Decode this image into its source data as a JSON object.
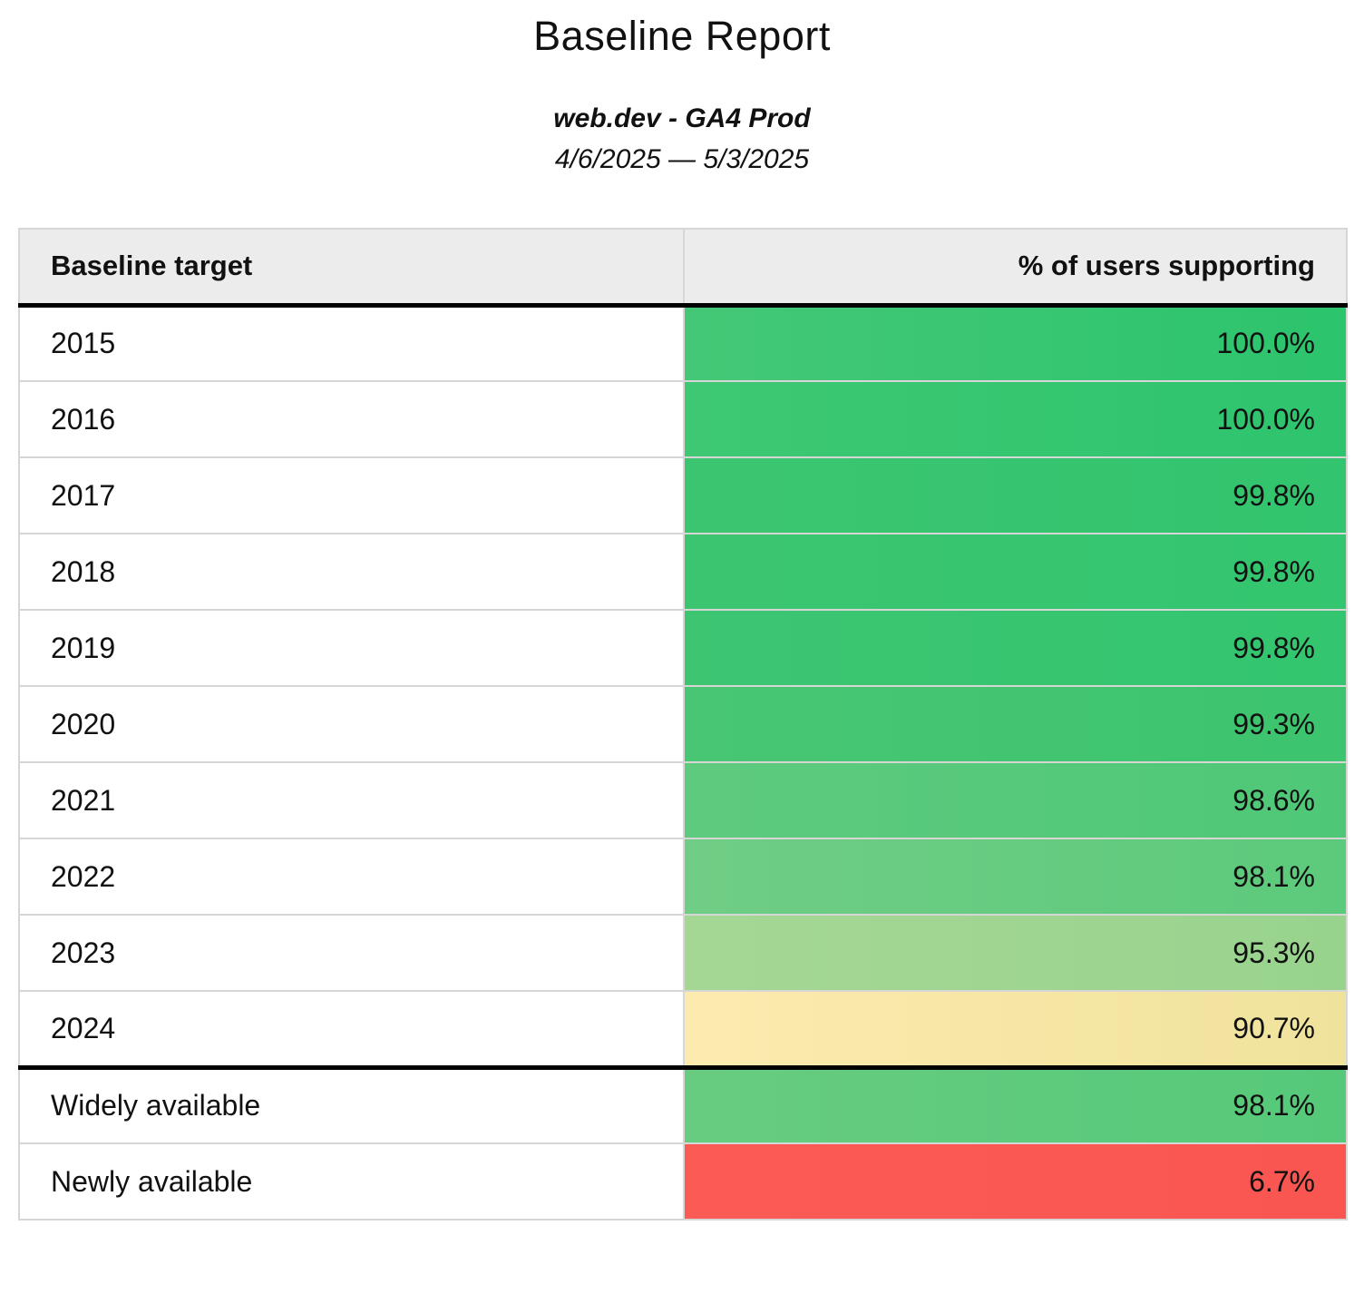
{
  "page": {
    "title": "Baseline Report",
    "subtitle": "web.dev - GA4 Prod",
    "date_range": "4/6/2025 — 5/3/2025"
  },
  "table": {
    "columns": [
      "Baseline target",
      "% of users supporting"
    ],
    "rows": [
      {
        "label": "2015",
        "value": "100.0%",
        "group": "year",
        "color_left": "#44c877",
        "color_right": "#2cc46d"
      },
      {
        "label": "2016",
        "value": "100.0%",
        "group": "year",
        "color_left": "#3ec873",
        "color_right": "#2ec46e"
      },
      {
        "label": "2017",
        "value": "99.8%",
        "group": "year",
        "color_left": "#3cc571",
        "color_right": "#32c46e"
      },
      {
        "label": "2018",
        "value": "99.8%",
        "group": "year",
        "color_left": "#3cc571",
        "color_right": "#33c56f"
      },
      {
        "label": "2019",
        "value": "99.8%",
        "group": "year",
        "color_left": "#3dc572",
        "color_right": "#33c56f"
      },
      {
        "label": "2020",
        "value": "99.3%",
        "group": "year",
        "color_left": "#48c673",
        "color_right": "#3cc46e"
      },
      {
        "label": "2021",
        "value": "98.6%",
        "group": "year",
        "color_left": "#5eca7e",
        "color_right": "#4ec877"
      },
      {
        "label": "2022",
        "value": "98.1%",
        "group": "year",
        "color_left": "#70cd85",
        "color_right": "#5cca7b"
      },
      {
        "label": "2023",
        "value": "95.3%",
        "group": "year",
        "color_left": "#a5d794",
        "color_right": "#98d38e"
      },
      {
        "label": "2024",
        "value": "90.7%",
        "group": "year",
        "color_left": "#fdeaaf",
        "color_right": "#efe39c"
      },
      {
        "label": "Widely available",
        "value": "98.1%",
        "group": "status",
        "color_left": "#68cc80",
        "color_right": "#55c979"
      },
      {
        "label": "Newly available",
        "value": "6.7%",
        "group": "status",
        "color_left": "#fc5b55",
        "color_right": "#f95651"
      }
    ]
  }
}
